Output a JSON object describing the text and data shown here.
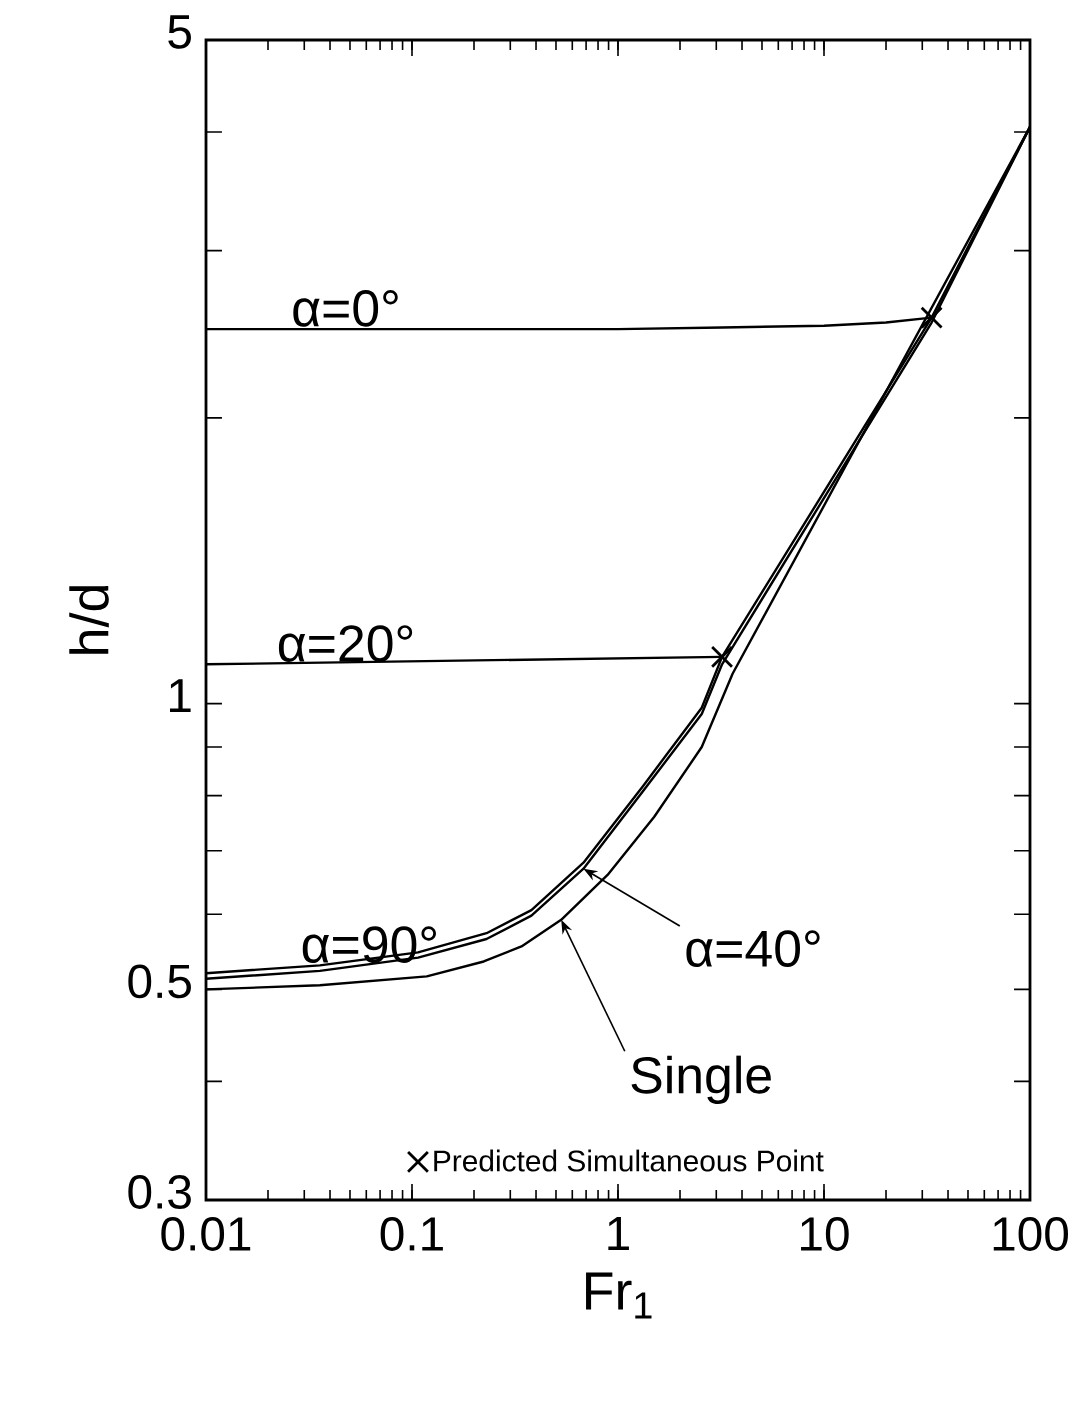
{
  "chart_data": {
    "type": "line",
    "xlabel": "Fr$_{1}$",
    "ylabel": "h/d",
    "log": "xy",
    "xlim": [
      0.01,
      100
    ],
    "ylim": [
      0.3,
      5
    ],
    "xticks": [
      0.01,
      0.1,
      1,
      10,
      100
    ],
    "yticks": [
      0.3,
      {
        "value": 0.4,
        "label": null
      },
      0.5,
      {
        "value": 0.6,
        "label": null
      },
      {
        "value": 0.7,
        "label": null
      },
      {
        "value": 0.8,
        "label": null
      },
      {
        "value": 0.9,
        "label": null
      },
      1,
      {
        "value": 2,
        "label": null
      },
      {
        "value": 3,
        "label": null
      },
      {
        "value": 4,
        "label": null
      },
      5
    ],
    "grid": false,
    "legend": "bottom",
    "marker": "none",
    "line_style": "solid",
    "series": [
      {
        "name": "α=0°",
        "color": "#000000",
        "x": [
          0.01,
          1,
          3.2,
          10,
          20,
          33.3
        ],
        "values": [
          2.48,
          2.48,
          2.49,
          2.5,
          2.52,
          2.55
        ]
      },
      {
        "name": "α=20°",
        "color": "#000000",
        "x": [
          0.01,
          3.2
        ],
        "values": [
          1.1,
          1.12
        ]
      },
      {
        "name": "α=90°",
        "color": "#000000",
        "x": [
          0.01,
          0.0357,
          0.107,
          0.23,
          0.38,
          0.68,
          1.33,
          2.55,
          3.2,
          33.3,
          100
        ],
        "values": [
          0.52,
          0.53,
          0.547,
          0.573,
          0.606,
          0.68,
          0.82,
          0.99,
          1.12,
          2.55,
          4.05
        ]
      },
      {
        "name": "α=40°",
        "color": "#000000",
        "x": [
          0.01,
          0.0357,
          0.107,
          0.23,
          0.38,
          0.68,
          1.33,
          2.55,
          3.2,
          33.3,
          100
        ],
        "values": [
          0.513,
          0.523,
          0.54,
          0.565,
          0.598,
          0.67,
          0.81,
          0.975,
          1.1,
          2.52,
          4.05
        ]
      },
      {
        "name": "Single",
        "color": "#000000",
        "x": [
          0.01,
          0.0357,
          0.118,
          0.223,
          0.34,
          0.53,
          0.89,
          1.5,
          2.55,
          3.6,
          100
        ],
        "values": [
          0.5,
          0.505,
          0.516,
          0.535,
          0.555,
          0.592,
          0.66,
          0.76,
          0.9,
          1.075,
          4.05
        ]
      },
      {
        "name": "Predicted Simultaneous Point",
        "type": "scatter",
        "marker": "cross",
        "color": "#000000",
        "x": [
          3.2,
          33.3
        ],
        "values": [
          1.12,
          2.55
        ]
      }
    ]
  }
}
